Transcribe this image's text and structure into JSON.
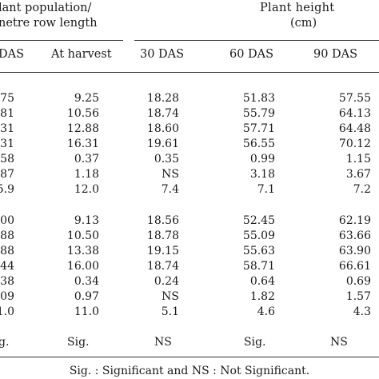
{
  "header": {
    "group1_line1": "lant population/",
    "group1_line2": "netre row length",
    "group2_line1": "Plant height",
    "group2_line2": "(cm)",
    "columns": [
      "DAS",
      "At harvest",
      "30 DAS",
      "60 DAS",
      "90 DAS"
    ]
  },
  "block1": [
    [
      "75",
      "9.25",
      "18.28",
      "51.83",
      "57.55"
    ],
    [
      "81",
      "10.56",
      "18.74",
      "55.79",
      "64.13"
    ],
    [
      "31",
      "12.88",
      "18.60",
      "57.71",
      "64.48"
    ],
    [
      "31",
      "16.31",
      "19.61",
      "56.55",
      "70.12"
    ],
    [
      "58",
      "0.37",
      "0.35",
      "0.99",
      "1.15"
    ],
    [
      "87",
      "1.18",
      "NS",
      "3.18",
      "3.67"
    ],
    [
      "5.9",
      "12.0",
      "7.4",
      "7.1",
      "7.2"
    ]
  ],
  "block2": [
    [
      "00",
      "9.13",
      "18.56",
      "52.45",
      "62.19"
    ],
    [
      "88",
      "10.50",
      "18.78",
      "55.09",
      "63.66"
    ],
    [
      "88",
      "13.38",
      "19.15",
      "55.63",
      "63.90"
    ],
    [
      "44",
      "16.00",
      "18.74",
      "58.71",
      "66.61"
    ],
    [
      "38",
      "0.34",
      "0.24",
      "0.64",
      "0.69"
    ],
    [
      "09",
      "0.97",
      "NS",
      "1.82",
      "1.57"
    ],
    [
      "1.0",
      "11.0",
      "5.1",
      "4.6",
      "4.3"
    ]
  ],
  "significance": [
    "g.",
    "Sig.",
    "NS",
    "Sig.",
    "NS"
  ],
  "footnote": "Sig. : Significant and NS : Not Significant."
}
